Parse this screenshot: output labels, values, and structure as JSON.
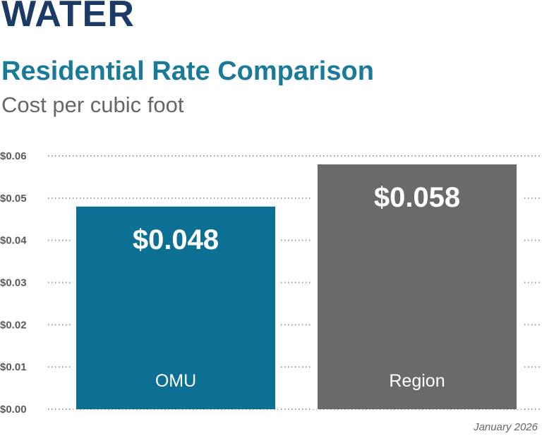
{
  "header": {
    "kicker": "WATER",
    "title": "Residential Rate Comparison",
    "subtitle": "Cost per cubic foot"
  },
  "footnote": "January 2026",
  "colors": {
    "kicker": "#1b3a66",
    "title": "#1a7a9a",
    "omu_bar": "#0b7094",
    "region_bar": "#6a6a6c",
    "grid": "#9a9a9a"
  },
  "chart_data": {
    "type": "bar",
    "title": "Residential Rate Comparison",
    "subtitle": "Cost per cubic foot",
    "categories": [
      "OMU",
      "Region"
    ],
    "values": [
      0.048,
      0.058
    ],
    "value_labels": [
      "$0.048",
      "$0.058"
    ],
    "ylim": [
      0,
      0.06
    ],
    "yticks": [
      0,
      0.01,
      0.02,
      0.03,
      0.04,
      0.05,
      0.06
    ],
    "ytick_labels": [
      "$0.00",
      "$0.01",
      "$0.02",
      "$0.03",
      "$0.04",
      "$0.05",
      "$0.06"
    ],
    "grid": true,
    "grid_style": "dotted",
    "legend": "none"
  }
}
